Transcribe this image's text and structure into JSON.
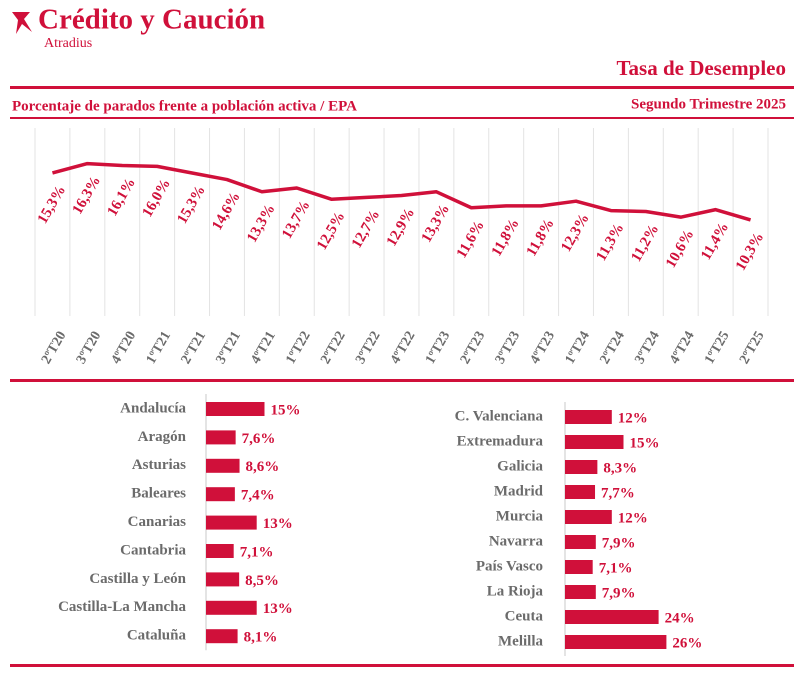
{
  "header": {
    "brand": "Crédito y Caución",
    "sub_brand": "Atradius",
    "title": "Tasa de Desempleo",
    "subtitle": "Porcentaje de parados frente a población activa / EPA",
    "period": "Segundo Trimestre 2025"
  },
  "chart_data": [
    {
      "type": "line",
      "color": "#d0103a",
      "categories": [
        "2ºT20",
        "3ºT20",
        "4ºT20",
        "1ºT21",
        "2ºT21",
        "3ºT21",
        "4ºT21",
        "1ºT22",
        "2ºT22",
        "3ºT22",
        "4ºT22",
        "1ºT23",
        "2ºT23",
        "3ºT23",
        "4ºT23",
        "1ºT24",
        "2ºT24",
        "3ºT24",
        "4ºT24",
        "1ºT25",
        "2ºT25"
      ],
      "values": [
        15.3,
        16.3,
        16.1,
        16.0,
        15.3,
        14.6,
        13.3,
        13.7,
        12.5,
        12.7,
        12.9,
        13.3,
        11.6,
        11.8,
        11.8,
        12.3,
        11.3,
        11.2,
        10.6,
        11.4,
        10.3
      ],
      "value_labels": [
        "15,3%",
        "16,3%",
        "16,1%",
        "16,0%",
        "15,3%",
        "14,6%",
        "13,3%",
        "13,7%",
        "12,5%",
        "12,7%",
        "12,9%",
        "13,3%",
        "11,6%",
        "11,8%",
        "11,8%",
        "12,3%",
        "11,3%",
        "11,2%",
        "10,6%",
        "11,4%",
        "10,3%"
      ]
    },
    {
      "type": "bar",
      "orientation": "horizontal",
      "color": "#d0103a",
      "categories": [
        "Andalucía",
        "Aragón",
        "Asturias",
        "Baleares",
        "Canarias",
        "Cantabria",
        "Castilla y León",
        "Castilla-La Mancha",
        "Cataluña"
      ],
      "values": [
        15,
        7.6,
        8.6,
        7.4,
        13,
        7.1,
        8.5,
        13,
        8.1
      ],
      "value_labels": [
        "15%",
        "7,6%",
        "8,6%",
        "7,4%",
        "13%",
        "7,1%",
        "8,5%",
        "13%",
        "8,1%"
      ]
    },
    {
      "type": "bar",
      "orientation": "horizontal",
      "color": "#d0103a",
      "categories": [
        "C. Valenciana",
        "Extremadura",
        "Galicia",
        "Madrid",
        "Murcia",
        "Navarra",
        "País Vasco",
        "La Rioja",
        "Ceuta",
        "Melilla"
      ],
      "values": [
        12,
        15,
        8.3,
        7.7,
        12,
        7.9,
        7.1,
        7.9,
        24,
        26
      ],
      "value_labels": [
        "12%",
        "15%",
        "8,3%",
        "7,7%",
        "12%",
        "7,9%",
        "7,1%",
        "7,9%",
        "24%",
        "26%"
      ]
    }
  ]
}
